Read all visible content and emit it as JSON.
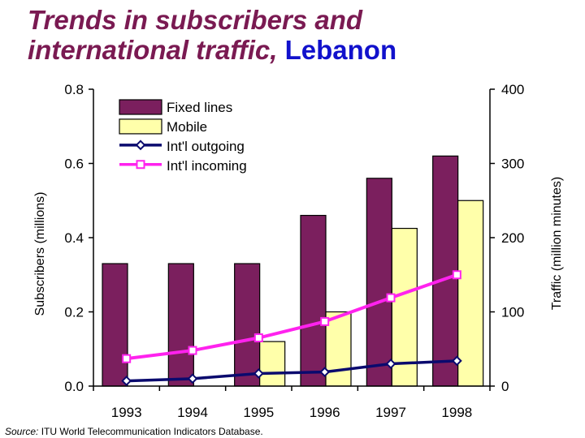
{
  "title": {
    "line1": "Trends in subscribers and",
    "line2_prefix": "international traffic, ",
    "line2_country": "Lebanon"
  },
  "source": {
    "label": "Source:",
    "text": " ITU World Telecommunication Indicators Database."
  },
  "chart_data": {
    "type": "bar",
    "categories": [
      "1993",
      "1994",
      "1995",
      "1996",
      "1997",
      "1998"
    ],
    "ylabel_left": "Subscribers (millions)",
    "ylabel_right": "Traffic (million minutes)",
    "ylim_left": [
      0,
      0.8
    ],
    "ylim_right": [
      0,
      400
    ],
    "yticks_left": [
      "0.0",
      "0.2",
      "0.4",
      "0.6",
      "0.8"
    ],
    "yticks_right": [
      "0",
      "100",
      "200",
      "300",
      "400"
    ],
    "legend_position": "top-left",
    "series": [
      {
        "name": "Fixed lines",
        "kind": "bar",
        "axis": "left",
        "color": "#7b1f5e",
        "values": [
          0.33,
          0.33,
          0.33,
          0.46,
          0.56,
          0.62
        ]
      },
      {
        "name": "Mobile",
        "kind": "bar",
        "axis": "left",
        "color": "#ffffaa",
        "values": [
          0.0,
          0.0,
          0.12,
          0.2,
          0.425,
          0.5
        ]
      },
      {
        "name": "Int'l outgoing",
        "kind": "line",
        "axis": "right",
        "color": "#0a0a6e",
        "marker": "diamond",
        "values": [
          7,
          10,
          17,
          19,
          30,
          34
        ]
      },
      {
        "name": "Int'l incoming",
        "kind": "line",
        "axis": "right",
        "color": "#ff22ee",
        "marker": "square",
        "values": [
          37,
          48,
          65,
          87,
          119,
          150
        ]
      }
    ]
  }
}
